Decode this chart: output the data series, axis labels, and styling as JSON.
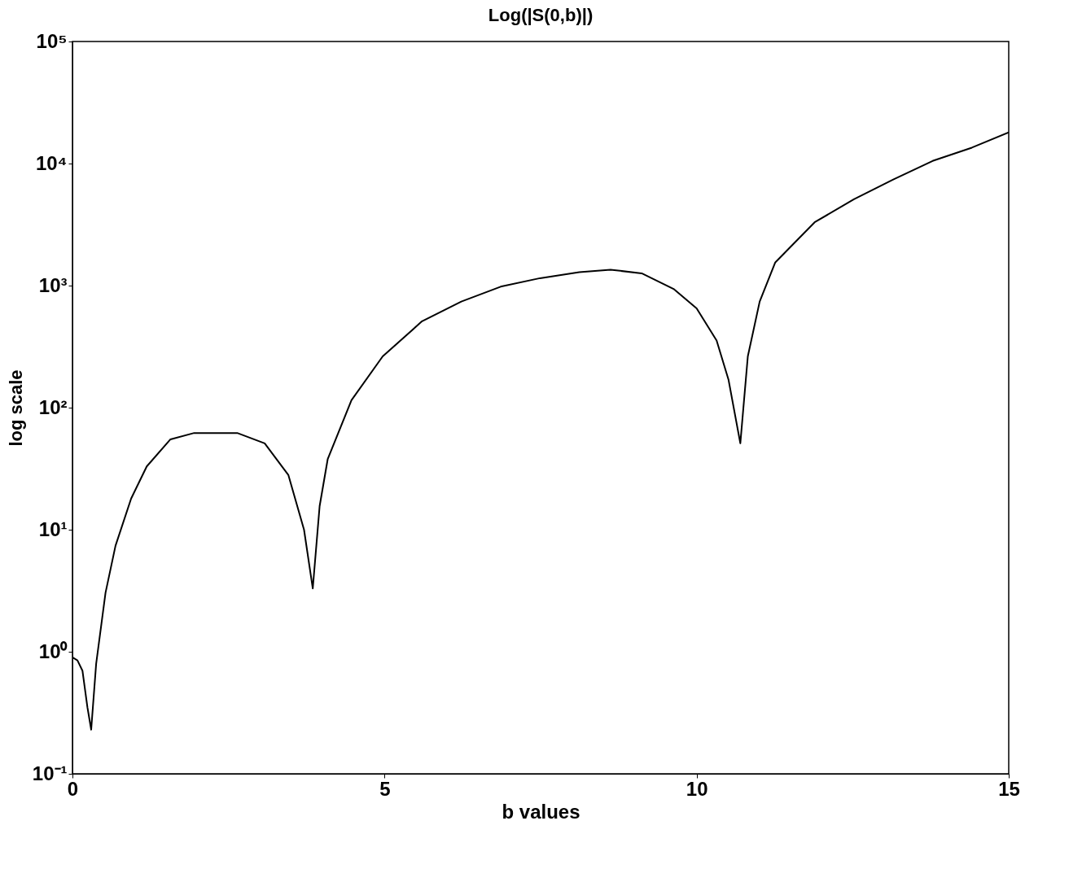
{
  "chart_data": {
    "type": "line",
    "title": "Log(|S(0,b)|)",
    "xlabel": "b values",
    "ylabel": "log scale",
    "x": [
      0,
      0.08,
      0.16,
      0.24,
      0.3,
      0.38,
      0.53,
      0.69,
      0.94,
      1.19,
      1.57,
      1.95,
      2.64,
      3.08,
      3.46,
      3.71,
      3.85,
      3.96,
      4.09,
      4.47,
      4.97,
      5.6,
      6.23,
      6.86,
      7.49,
      8.12,
      8.62,
      9.12,
      9.63,
      10.0,
      10.32,
      10.51,
      10.7,
      10.82,
      11.01,
      11.26,
      11.89,
      12.52,
      13.15,
      13.78,
      14.41,
      15
    ],
    "series": [
      {
        "color": "#000000",
        "values": [
          0.9,
          0.85,
          0.7,
          0.35,
          0.23,
          0.8,
          3.05,
          7.4,
          18,
          33,
          55,
          62,
          62,
          51,
          28,
          10,
          3.3,
          15.6,
          38,
          115,
          263,
          510,
          740,
          980,
          1150,
          1290,
          1350,
          1260,
          940,
          650,
          355,
          170,
          51,
          263,
          740,
          1550,
          3300,
          5100,
          7400,
          10500,
          13500,
          18000
        ]
      }
    ],
    "xlim": [
      0,
      15
    ],
    "xticks": [
      0,
      5,
      10,
      15
    ],
    "ylim": [
      0.1,
      100000
    ],
    "log": "y",
    "yticks": [
      {
        "value": 0.1,
        "label": "10⁻¹"
      },
      {
        "value": 1,
        "label": "10⁰"
      },
      {
        "value": 10,
        "label": "10¹"
      },
      {
        "value": 100,
        "label": "10²"
      },
      {
        "value": 1000,
        "label": "10³"
      },
      {
        "value": 10000,
        "label": "10⁴"
      },
      {
        "value": 100000,
        "label": "10⁵"
      }
    ],
    "grid": false,
    "legend": false,
    "line_style": "solid",
    "marker": "none"
  }
}
